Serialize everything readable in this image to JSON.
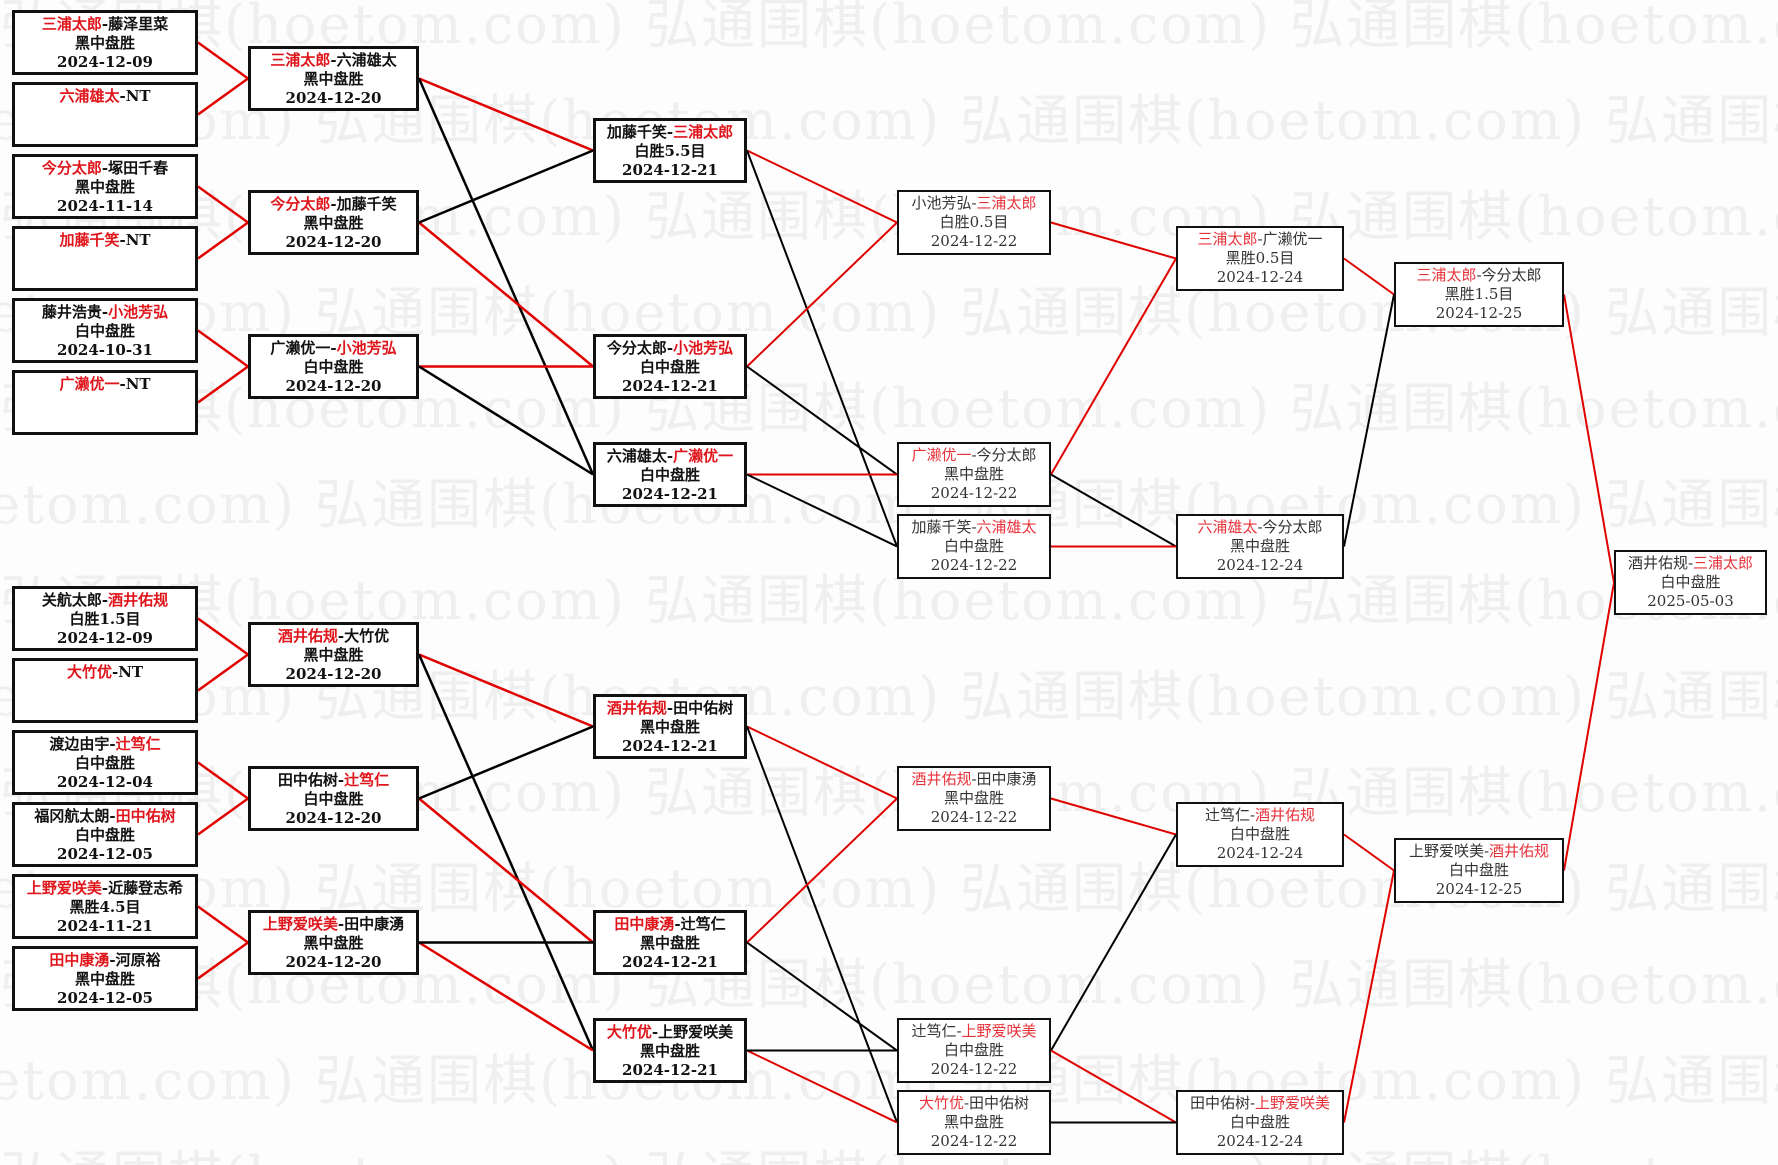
{
  "watermark": "弘通围棋(hoetom.com)",
  "colors": {
    "winner_text": "#e0151b",
    "winner_line": "#e00000",
    "loser_line": "#000000",
    "border": "#111111"
  },
  "matches": {
    "a0": {
      "p1": "三浦太郎",
      "p2": "藤泽里菜",
      "winner": 1,
      "result": "黑中盘胜",
      "date": "2024-12-09"
    },
    "a1": {
      "p1": "六浦雄太",
      "p2": "NT",
      "winner": 1,
      "result": "",
      "date": ""
    },
    "a2": {
      "p1": "今分太郎",
      "p2": "塚田千春",
      "winner": 1,
      "result": "黑中盘胜",
      "date": "2024-11-14"
    },
    "a3": {
      "p1": "加藤千笑",
      "p2": "NT",
      "winner": 1,
      "result": "",
      "date": ""
    },
    "a4": {
      "p1": "藤井浩贵",
      "p2": "小池芳弘",
      "winner": 2,
      "result": "白中盘胜",
      "date": "2024-10-31"
    },
    "a5": {
      "p1": "广濑优一",
      "p2": "NT",
      "winner": 1,
      "result": "",
      "date": ""
    },
    "a6": {
      "p1": "关航太郎",
      "p2": "酒井佑规",
      "winner": 2,
      "result": "白胜1.5目",
      "date": "2024-12-09"
    },
    "a7": {
      "p1": "大竹优",
      "p2": "NT",
      "winner": 1,
      "result": "",
      "date": ""
    },
    "a8": {
      "p1": "渡边由宇",
      "p2": "辻笃仁",
      "winner": 2,
      "result": "白中盘胜",
      "date": "2024-12-04"
    },
    "a9": {
      "p1": "福冈航太朗",
      "p2": "田中佑树",
      "winner": 2,
      "result": "白中盘胜",
      "date": "2024-12-05"
    },
    "a10": {
      "p1": "上野爱咲美",
      "p2": "近藤登志希",
      "winner": 1,
      "result": "黑胜4.5目",
      "date": "2024-11-21"
    },
    "a11": {
      "p1": "田中康湧",
      "p2": "河原裕",
      "winner": 1,
      "result": "黑中盘胜",
      "date": "2024-12-05"
    },
    "b0": {
      "p1": "三浦太郎",
      "p2": "六浦雄太",
      "winner": 1,
      "result": "黑中盘胜",
      "date": "2024-12-20"
    },
    "b1": {
      "p1": "今分太郎",
      "p2": "加藤千笑",
      "winner": 1,
      "result": "黑中盘胜",
      "date": "2024-12-20"
    },
    "b2": {
      "p1": "广濑优一",
      "p2": "小池芳弘",
      "winner": 2,
      "result": "白中盘胜",
      "date": "2024-12-20"
    },
    "b3": {
      "p1": "酒井佑规",
      "p2": "大竹优",
      "winner": 1,
      "result": "黑中盘胜",
      "date": "2024-12-20"
    },
    "b4": {
      "p1": "田中佑树",
      "p2": "辻笃仁",
      "winner": 2,
      "result": "白中盘胜",
      "date": "2024-12-20"
    },
    "b5": {
      "p1": "上野爱咲美",
      "p2": "田中康湧",
      "winner": 1,
      "result": "黑中盘胜",
      "date": "2024-12-20"
    },
    "c0": {
      "p1": "加藤千笑",
      "p2": "三浦太郎",
      "winner": 2,
      "result": "白胜5.5目",
      "date": "2024-12-21"
    },
    "c1": {
      "p1": "今分太郎",
      "p2": "小池芳弘",
      "winner": 2,
      "result": "白中盘胜",
      "date": "2024-12-21"
    },
    "c2": {
      "p1": "六浦雄太",
      "p2": "广濑优一",
      "winner": 2,
      "result": "白中盘胜",
      "date": "2024-12-21"
    },
    "c3": {
      "p1": "酒井佑规",
      "p2": "田中佑树",
      "winner": 1,
      "result": "黑中盘胜",
      "date": "2024-12-21"
    },
    "c4": {
      "p1": "田中康湧",
      "p2": "辻笃仁",
      "winner": 1,
      "result": "黑中盘胜",
      "date": "2024-12-21"
    },
    "c5": {
      "p1": "大竹优",
      "p2": "上野爱咲美",
      "winner": 1,
      "result": "黑中盘胜",
      "date": "2024-12-21"
    },
    "d0": {
      "p1": "小池芳弘",
      "p2": "三浦太郎",
      "winner": 2,
      "result": "白胜0.5目",
      "date": "2024-12-22"
    },
    "d1": {
      "p1": "广濑优一",
      "p2": "今分太郎",
      "winner": 1,
      "result": "黑中盘胜",
      "date": "2024-12-22"
    },
    "d2": {
      "p1": "加藤千笑",
      "p2": "六浦雄太",
      "winner": 2,
      "result": "白中盘胜",
      "date": "2024-12-22"
    },
    "d3": {
      "p1": "酒井佑规",
      "p2": "田中康湧",
      "winner": 1,
      "result": "黑中盘胜",
      "date": "2024-12-22"
    },
    "d4": {
      "p1": "辻笃仁",
      "p2": "上野爱咲美",
      "winner": 2,
      "result": "白中盘胜",
      "date": "2024-12-22"
    },
    "d5": {
      "p1": "大竹优",
      "p2": "田中佑树",
      "winner": 1,
      "result": "黑中盘胜",
      "date": "2024-12-22"
    },
    "e0": {
      "p1": "三浦太郎",
      "p2": "广濑优一",
      "winner": 1,
      "result": "黑胜0.5目",
      "date": "2024-12-24"
    },
    "e1": {
      "p1": "六浦雄太",
      "p2": "今分太郎",
      "winner": 1,
      "result": "黑中盘胜",
      "date": "2024-12-24"
    },
    "e2": {
      "p1": "辻笃仁",
      "p2": "酒井佑规",
      "winner": 2,
      "result": "白中盘胜",
      "date": "2024-12-24"
    },
    "e3": {
      "p1": "田中佑树",
      "p2": "上野爱咲美",
      "winner": 2,
      "result": "白中盘胜",
      "date": "2024-12-24"
    },
    "f0": {
      "p1": "三浦太郎",
      "p2": "今分太郎",
      "winner": 1,
      "result": "黑胜1.5目",
      "date": "2024-12-25"
    },
    "f1": {
      "p1": "上野爱咲美",
      "p2": "酒井佑规",
      "winner": 2,
      "result": "白中盘胜",
      "date": "2024-12-25"
    },
    "g0": {
      "p1": "酒井佑规",
      "p2": "三浦太郎",
      "winner": 2,
      "result": "白中盘胜",
      "date": "2025-05-03"
    }
  },
  "links": [
    [
      "a0",
      "b0",
      "winner"
    ],
    [
      "a1",
      "b0",
      "winner"
    ],
    [
      "a2",
      "b1",
      "winner"
    ],
    [
      "a3",
      "b1",
      "winner"
    ],
    [
      "a4",
      "b2",
      "winner"
    ],
    [
      "a5",
      "b2",
      "winner"
    ],
    [
      "a6",
      "b3",
      "winner"
    ],
    [
      "a7",
      "b3",
      "winner"
    ],
    [
      "a8",
      "b4",
      "winner"
    ],
    [
      "a9",
      "b4",
      "winner"
    ],
    [
      "a10",
      "b5",
      "winner"
    ],
    [
      "a11",
      "b5",
      "winner"
    ],
    [
      "b0",
      "c0",
      "winner"
    ],
    [
      "b0",
      "c2",
      "loser"
    ],
    [
      "b1",
      "c1",
      "winner"
    ],
    [
      "b1",
      "c0",
      "loser"
    ],
    [
      "b2",
      "c1",
      "winner"
    ],
    [
      "b2",
      "c2",
      "loser"
    ],
    [
      "b3",
      "c3",
      "winner"
    ],
    [
      "b3",
      "c5",
      "loser"
    ],
    [
      "b4",
      "c4",
      "winner"
    ],
    [
      "b4",
      "c3",
      "loser"
    ],
    [
      "b5",
      "c5",
      "winner"
    ],
    [
      "b5",
      "c4",
      "loser"
    ],
    [
      "c0",
      "d0",
      "winner"
    ],
    [
      "c0",
      "d2",
      "loser"
    ],
    [
      "c1",
      "d0",
      "winner"
    ],
    [
      "c1",
      "d1",
      "loser"
    ],
    [
      "c2",
      "d1",
      "winner"
    ],
    [
      "c2",
      "d2",
      "loser"
    ],
    [
      "c3",
      "d3",
      "winner"
    ],
    [
      "c3",
      "d5",
      "loser"
    ],
    [
      "c4",
      "d3",
      "winner"
    ],
    [
      "c4",
      "d4",
      "loser"
    ],
    [
      "c5",
      "d5",
      "winner"
    ],
    [
      "c5",
      "d4",
      "loser"
    ],
    [
      "d0",
      "e0",
      "winner"
    ],
    [
      "d1",
      "e0",
      "winner"
    ],
    [
      "d1",
      "e1",
      "loser"
    ],
    [
      "d2",
      "e1",
      "winner"
    ],
    [
      "d3",
      "e2",
      "winner"
    ],
    [
      "d4",
      "e2",
      "loser"
    ],
    [
      "d4",
      "e3",
      "winner"
    ],
    [
      "d5",
      "e3",
      "loser"
    ],
    [
      "e0",
      "f0",
      "winner"
    ],
    [
      "e1",
      "f0",
      "loser"
    ],
    [
      "e2",
      "f1",
      "winner"
    ],
    [
      "e3",
      "f1",
      "winner"
    ],
    [
      "f0",
      "g0",
      "winner"
    ],
    [
      "f1",
      "g0",
      "winner"
    ]
  ]
}
